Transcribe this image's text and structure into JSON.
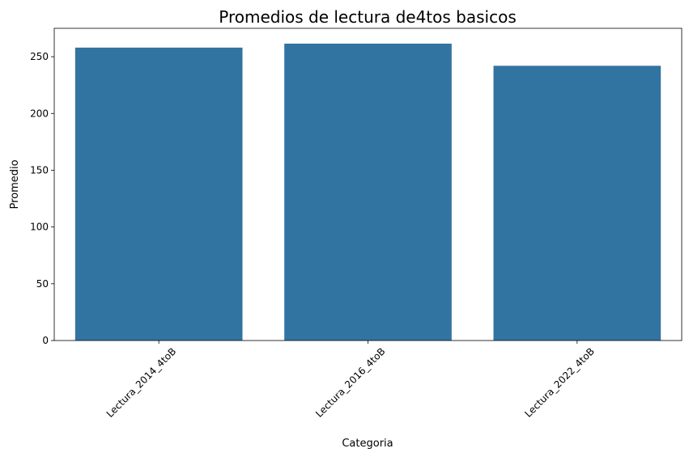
{
  "chart_data": {
    "type": "bar",
    "title": "Promedios de lectura de4tos basicos",
    "xlabel": "Categoria",
    "ylabel": "Promedio",
    "categories": [
      "Lectura_2014_4toB",
      "Lectura_2016_4toB",
      "Lectura_2022_4toB"
    ],
    "values": [
      258,
      261.5,
      242
    ],
    "ylim": [
      0,
      275
    ],
    "yticks": [
      0,
      50,
      100,
      150,
      200,
      250
    ],
    "bar_color": "#3274a1",
    "grid": false,
    "legend": "none"
  }
}
